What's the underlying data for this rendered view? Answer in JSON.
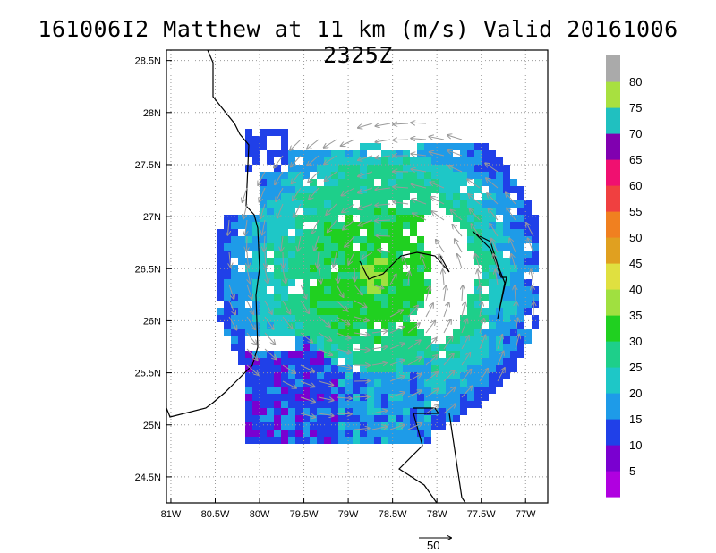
{
  "title": "161006I2 Matthew at 11 km (m/s) Valid 20161006 2325Z",
  "reference_vector": {
    "label": "50",
    "value": 50
  },
  "colorbar": {
    "labels": [
      "5",
      "10",
      "15",
      "20",
      "25",
      "30",
      "35",
      "40",
      "45",
      "50",
      "55",
      "60",
      "65",
      "70",
      "75",
      "80"
    ],
    "colors": [
      "#b000e0",
      "#7a00d0",
      "#2040e8",
      "#1e9be8",
      "#1ec7c7",
      "#1ecf8a",
      "#20d020",
      "#a0e040",
      "#e0e040",
      "#e0a020",
      "#f08020",
      "#f04040",
      "#f01070",
      "#8000b0",
      "#20c0c0",
      "#a8e040",
      "#aaaaaa"
    ]
  },
  "chart_data": {
    "type": "heatmap",
    "title": "161006I2 Matthew at 11 km (m/s) Valid 20161006 2325Z",
    "variable": "wind speed",
    "units": "m/s",
    "xlabel": "",
    "ylabel": "",
    "x_ticks": [
      "81W",
      "80.5W",
      "80W",
      "79.5W",
      "79W",
      "78.5W",
      "78W",
      "77.5W",
      "77W"
    ],
    "y_ticks": [
      "24.5N",
      "25N",
      "25.5N",
      "26N",
      "26.5N",
      "27N",
      "27.5N",
      "28N",
      "28.5N"
    ],
    "xlim_lon": [
      -81.05,
      -76.75
    ],
    "ylim_lat": [
      24.25,
      28.6
    ],
    "grid": "dotted",
    "storm_center": {
      "lon": -78.65,
      "lat": 26.45
    },
    "peak_wind_ms": 40,
    "typical_ring_ms": [
      20,
      30
    ],
    "contour_levels": [
      5,
      10,
      15,
      20,
      25,
      30,
      35,
      40,
      45,
      50,
      55,
      60,
      65,
      70,
      75,
      80
    ]
  }
}
